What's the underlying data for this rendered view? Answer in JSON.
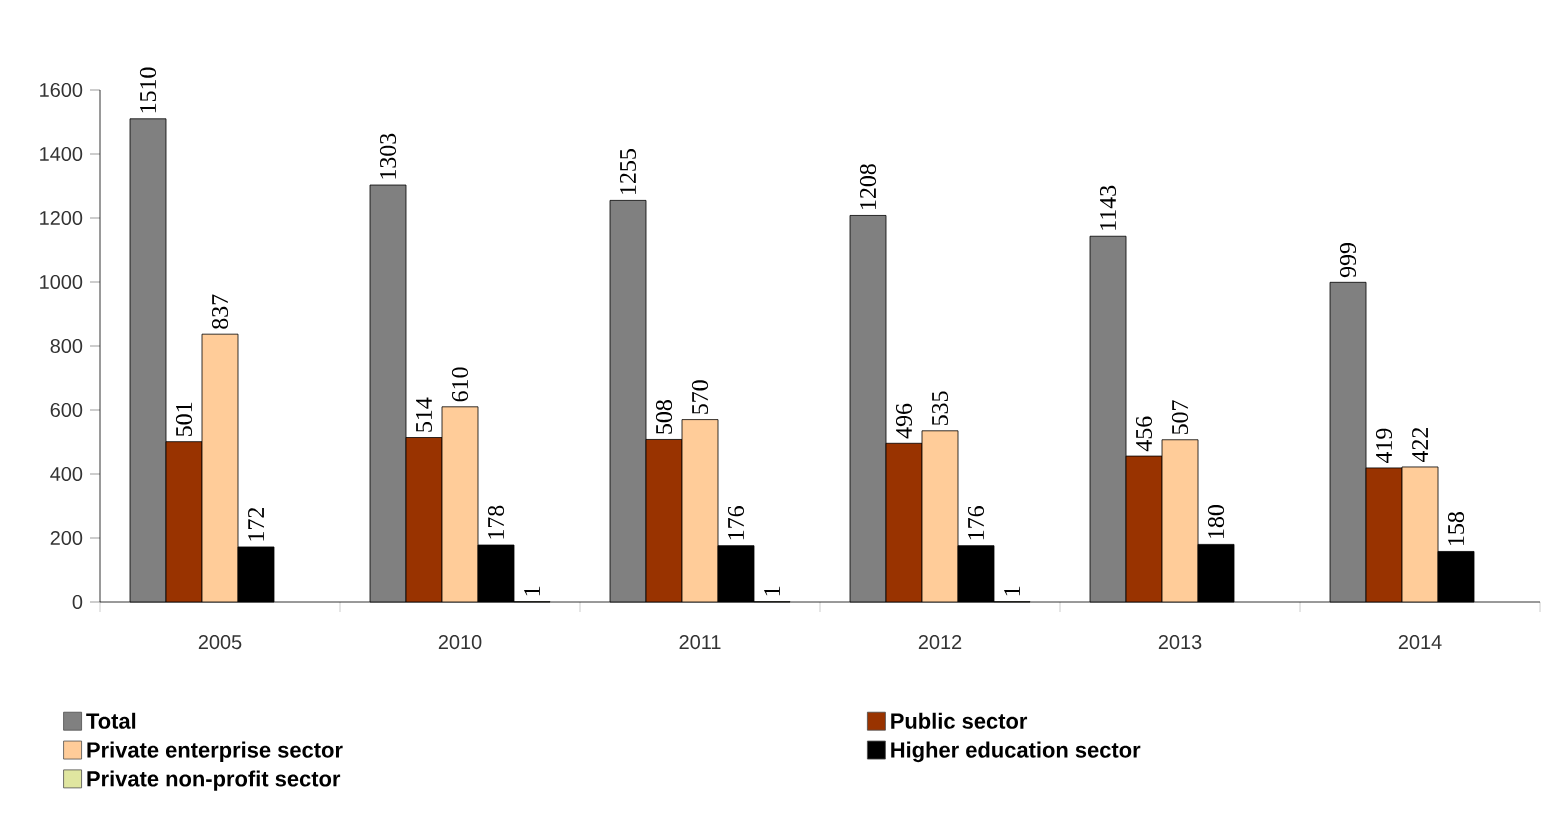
{
  "chart_data": {
    "type": "bar",
    "categories": [
      "2005",
      "2010",
      "2011",
      "2012",
      "2013",
      "2014"
    ],
    "series": [
      {
        "name": "Total",
        "color": "#808080",
        "values": [
          1510,
          1303,
          1255,
          1208,
          1143,
          999
        ]
      },
      {
        "name": "Public sector",
        "color": "#993300",
        "values": [
          501,
          514,
          508,
          496,
          456,
          419
        ]
      },
      {
        "name": "Private enterprise sector",
        "color": "#ffcc99",
        "values": [
          837,
          610,
          570,
          535,
          507,
          422
        ]
      },
      {
        "name": "Higher education sector",
        "color": "#000000",
        "values": [
          172,
          178,
          176,
          176,
          180,
          158
        ]
      },
      {
        "name": "Private non-profit sector",
        "color": "#e0e6a0",
        "values": [
          null,
          1,
          1,
          1,
          null,
          null
        ]
      }
    ],
    "ylim": [
      0,
      1600
    ],
    "yticks": [
      0,
      200,
      400,
      600,
      800,
      1000,
      1200,
      1400,
      1600
    ],
    "data_labels": true,
    "grid": false,
    "legend": "bottom"
  }
}
